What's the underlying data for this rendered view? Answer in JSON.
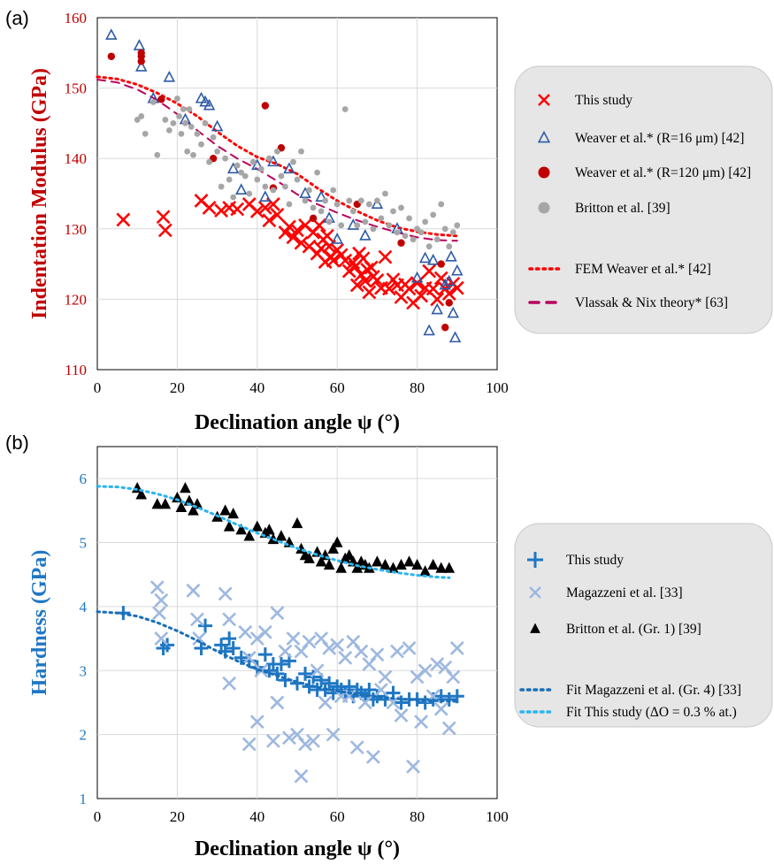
{
  "panels": {
    "a": {
      "label": "(a)"
    },
    "b": {
      "label": "(b)"
    }
  },
  "chart_data": [
    {
      "type": "scatter",
      "title": "",
      "xlabel": "Declination angle ψ (°)",
      "ylabel": "Indentation Modulus (GPa)",
      "xlim": [
        0,
        100
      ],
      "ylim": [
        110,
        160
      ],
      "xticks": [
        "0",
        "20",
        "40",
        "60",
        "80",
        "100"
      ],
      "yticks": [
        "110",
        "120",
        "130",
        "140",
        "150",
        "160"
      ],
      "grid": true,
      "legend_position": "right",
      "series": [
        {
          "name": "This study",
          "marker": "x",
          "color": "#ff0000",
          "x": [
            6.5,
            16.5,
            17,
            26,
            28,
            31,
            33,
            35,
            38,
            40,
            42,
            43,
            44,
            45,
            47,
            48,
            49,
            50,
            51,
            52,
            53,
            54,
            55,
            55.5,
            56,
            56.5,
            57,
            57.5,
            58,
            58.5,
            59,
            60,
            61,
            62,
            63,
            64,
            64.5,
            65,
            65.5,
            66,
            66.5,
            67,
            67.5,
            68,
            68.5,
            69,
            70,
            71,
            72,
            73,
            74,
            75,
            76,
            77,
            78,
            79,
            80,
            81,
            82,
            83,
            84,
            85,
            86,
            87,
            88,
            89,
            90
          ],
          "y": [
            131.3,
            131.7,
            129.8,
            134,
            133,
            132.6,
            133,
            132.8,
            133.5,
            132.5,
            133,
            131.2,
            133.5,
            132,
            129.5,
            130.3,
            128.8,
            129.8,
            128,
            130.5,
            127.5,
            129.5,
            126.5,
            130.5,
            127.2,
            128.5,
            125.3,
            129,
            127.5,
            126,
            125.5,
            127,
            126.3,
            125.5,
            124,
            125.2,
            124.6,
            122,
            126.5,
            123.5,
            125.8,
            122.6,
            124.2,
            121,
            124.5,
            123.2,
            122.7,
            121.6,
            126,
            121.5,
            122.8,
            122,
            120.3,
            122.1,
            121.5,
            119.5,
            122.3,
            120.5,
            121.6,
            124,
            121.5,
            120,
            123,
            121.5,
            120.8,
            122.2,
            121.6
          ]
        },
        {
          "name": "Weaver et al.* (R=16 μm) [42]",
          "marker": "triangle-open",
          "color": "#2e5aa8",
          "x": [
            3.5,
            10.5,
            11,
            14,
            18,
            22,
            26,
            27,
            28,
            30,
            34,
            36,
            40,
            42,
            44,
            48,
            52,
            56,
            58,
            60,
            64,
            67,
            70,
            75,
            80,
            82,
            83,
            84,
            85,
            87,
            88,
            89,
            90,
            89.5,
            88.5
          ],
          "y": [
            157.5,
            156,
            153,
            148.5,
            151.5,
            145.5,
            148.5,
            148,
            147.5,
            144.5,
            138.5,
            135.5,
            139,
            134.5,
            139.5,
            138.5,
            135,
            134.5,
            131.5,
            128.5,
            130.5,
            129,
            133.5,
            130,
            123,
            125.8,
            115.5,
            125.5,
            118.5,
            122,
            122.5,
            118,
            124,
            114.5,
            126
          ]
        },
        {
          "name": "Weaver et al.* (R=120 μm) [42]",
          "marker": "circle",
          "color": "#c00000",
          "x": [
            3.5,
            11,
            11,
            11,
            16,
            29,
            42,
            44,
            46,
            54,
            65,
            76,
            86,
            87,
            88
          ],
          "y": [
            154.5,
            155,
            154.5,
            153.8,
            148.4,
            140,
            147.5,
            135.8,
            141.5,
            131.5,
            133.5,
            128,
            125,
            116,
            119.5
          ]
        },
        {
          "name": "Britton et al. [39]",
          "marker": "circle",
          "color": "#a6a6a6",
          "x": [
            10,
            11,
            12,
            14,
            15,
            17,
            18,
            19,
            20,
            20.5,
            21,
            21.5,
            22,
            22.5,
            23,
            23.5,
            24,
            25,
            26,
            27,
            28,
            29,
            30,
            31,
            32,
            33,
            34,
            35,
            36,
            37,
            38,
            39,
            40,
            41,
            42,
            43,
            44,
            45,
            46,
            47,
            48,
            49,
            50,
            51,
            52,
            53,
            54,
            55,
            56,
            57,
            58,
            59,
            60,
            61,
            62,
            63,
            64,
            65,
            66,
            67,
            68,
            69,
            70,
            71,
            72,
            73,
            74,
            75,
            76,
            77,
            78,
            79,
            80,
            81,
            82,
            83,
            84,
            85,
            86,
            87,
            88,
            89,
            90
          ],
          "y": [
            145.5,
            146,
            143.5,
            148,
            140.5,
            145.5,
            144,
            145,
            148.5,
            146,
            143.5,
            147,
            145,
            141,
            147,
            144.5,
            140.5,
            143.5,
            142,
            145,
            139.5,
            143,
            141,
            136,
            140,
            137,
            134.5,
            139,
            138,
            137.5,
            135,
            139.5,
            137,
            138.5,
            136,
            140,
            135.5,
            141,
            137.5,
            136,
            133.5,
            139.5,
            137,
            141,
            134,
            135.5,
            133,
            138,
            132.5,
            134,
            131,
            135.5,
            133.5,
            130.5,
            147,
            134,
            132.5,
            130.5,
            134,
            131,
            133.5,
            130,
            134,
            131.5,
            135,
            130.5,
            132.5,
            129.5,
            133,
            129,
            131.5,
            128.5,
            130,
            129.5,
            131,
            127.5,
            132,
            128.5,
            133.5,
            130,
            127.5,
            129.5,
            130.5
          ]
        }
      ],
      "fits": [
        {
          "name": "FEM Weaver et al.* [42]",
          "style": "dotted",
          "color": "#ff0000",
          "x": [
            0,
            5,
            10,
            15,
            20,
            25,
            30,
            35,
            40,
            45,
            50,
            55,
            60,
            65,
            70,
            75,
            80,
            85,
            90
          ],
          "y": [
            151.6,
            151.3,
            150.5,
            149.3,
            147.8,
            146,
            143.8,
            141.8,
            140.2,
            139.2,
            137.8,
            135.8,
            134,
            132.5,
            131.2,
            130.2,
            129.6,
            129.2,
            129
          ]
        },
        {
          "name": "Vlassak & Nix theory* [63]",
          "style": "dashed",
          "color": "#b8005c",
          "x": [
            0,
            5,
            10,
            15,
            20,
            25,
            30,
            35,
            40,
            45,
            50,
            55,
            60,
            65,
            70,
            75,
            80,
            85,
            90
          ],
          "y": [
            151.2,
            150.8,
            149.8,
            148.3,
            146.3,
            144,
            141.8,
            140,
            138.5,
            136.8,
            134.9,
            133.5,
            132.3,
            131.2,
            130.3,
            129.5,
            128.8,
            128.4,
            128.3
          ]
        }
      ]
    },
    {
      "type": "scatter",
      "title": "",
      "xlabel": "Declination angle ψ (°)",
      "ylabel": "Hardness (GPa)",
      "xlim": [
        0,
        100
      ],
      "ylim": [
        1,
        6.5
      ],
      "xticks": [
        "0",
        "20",
        "40",
        "60",
        "80",
        "100"
      ],
      "yticks": [
        "1",
        "2",
        "3",
        "4",
        "5",
        "6"
      ],
      "grid": true,
      "legend_position": "right",
      "series": [
        {
          "name": "This study",
          "marker": "plus",
          "color": "#1f77c4",
          "x": [
            6.5,
            16.5,
            17.5,
            26,
            27,
            31,
            32,
            33,
            34,
            36,
            38,
            40,
            42,
            43,
            44,
            45,
            46,
            47,
            48,
            50,
            52,
            53,
            54,
            55,
            56,
            57,
            58,
            59,
            60,
            61,
            62,
            63,
            64,
            65,
            66,
            67,
            68,
            69,
            70,
            72,
            74,
            76,
            78,
            80,
            82,
            84,
            86,
            88,
            90
          ],
          "y": [
            3.9,
            3.35,
            3.4,
            3.35,
            3.7,
            3.4,
            3.3,
            3.5,
            3.35,
            3.2,
            3.15,
            3.05,
            3.25,
            3.0,
            3.1,
            2.95,
            3.1,
            2.85,
            3.15,
            2.8,
            2.95,
            2.75,
            2.9,
            2.7,
            2.85,
            2.7,
            2.8,
            2.65,
            2.75,
            2.7,
            2.65,
            2.75,
            2.6,
            2.7,
            2.65,
            2.6,
            2.7,
            2.55,
            2.6,
            2.55,
            2.65,
            2.5,
            2.55,
            2.55,
            2.5,
            2.55,
            2.6,
            2.55,
            2.6
          ]
        },
        {
          "name": "Magazzeni et al. [33]",
          "marker": "x",
          "color": "#9db8e0",
          "x": [
            15,
            15.5,
            16,
            16,
            24,
            25,
            25.5,
            32,
            33,
            33,
            37,
            38,
            38,
            40,
            40,
            41,
            42,
            44,
            45,
            45,
            47,
            48,
            49,
            50,
            51,
            51,
            52,
            53,
            54,
            55,
            56,
            57,
            58,
            59,
            60,
            61,
            62,
            63,
            64,
            65,
            66,
            67,
            68,
            69,
            70,
            71,
            72,
            74,
            75,
            76,
            78,
            79,
            80,
            81,
            82,
            84,
            85,
            86,
            87,
            88,
            89,
            90
          ],
          "y": [
            4.3,
            3.9,
            4.1,
            3.5,
            4.25,
            3.8,
            3.5,
            4.2,
            3.8,
            2.8,
            3.6,
            3.2,
            1.85,
            3.5,
            2.2,
            3.0,
            3.6,
            1.9,
            3.9,
            2.5,
            3.3,
            1.95,
            3.5,
            2.0,
            1.35,
            3.3,
            1.85,
            3.45,
            1.9,
            3.0,
            3.5,
            2.5,
            3.35,
            2.0,
            3.4,
            2.6,
            3.2,
            2.6,
            3.45,
            1.8,
            3.3,
            2.5,
            3.1,
            1.65,
            3.25,
            2.7,
            2.9,
            2.5,
            3.3,
            2.3,
            3.35,
            1.5,
            2.9,
            2.2,
            3.0,
            2.6,
            3.1,
            2.4,
            3.05,
            2.1,
            2.9,
            3.35
          ]
        },
        {
          "name": "Britton et al. (Gr. 1) [39]",
          "marker": "triangle",
          "color": "#000000",
          "x": [
            10,
            11,
            15,
            17,
            20,
            21,
            22,
            23,
            24,
            25,
            30,
            32,
            33,
            34,
            36,
            38,
            40,
            42,
            43,
            44,
            46,
            48,
            50,
            51,
            52,
            53,
            55,
            56,
            57,
            58,
            59,
            60,
            61,
            62,
            63,
            64,
            65,
            66,
            67,
            68,
            70,
            72,
            74,
            76,
            78,
            80,
            82,
            84,
            86,
            88
          ],
          "y": [
            5.85,
            5.75,
            5.6,
            5.6,
            5.7,
            5.55,
            5.85,
            5.65,
            5.5,
            5.6,
            5.4,
            5.5,
            5.25,
            5.45,
            5.2,
            5.1,
            5.25,
            5.15,
            5.2,
            5.05,
            5.1,
            5.0,
            5.3,
            4.9,
            4.8,
            4.75,
            4.85,
            4.7,
            4.8,
            4.65,
            4.9,
            5.0,
            4.6,
            4.75,
            4.8,
            4.7,
            4.6,
            4.7,
            4.65,
            4.6,
            4.7,
            4.65,
            4.6,
            4.65,
            4.7,
            4.65,
            4.55,
            4.65,
            4.6,
            4.6
          ]
        }
      ],
      "fits": [
        {
          "name": "Fit Magazzeni et al. (Gr. 4) [33]",
          "style": "dotted",
          "color": "#1a6fb8",
          "x": [
            0,
            5,
            10,
            15,
            20,
            25,
            30,
            35,
            40,
            45,
            50,
            55,
            60,
            65,
            70,
            75,
            80,
            85,
            90
          ],
          "y": [
            3.92,
            3.9,
            3.85,
            3.75,
            3.62,
            3.47,
            3.3,
            3.15,
            3.02,
            2.92,
            2.82,
            2.74,
            2.68,
            2.63,
            2.59,
            2.56,
            2.54,
            2.53,
            2.52
          ]
        },
        {
          "name": "Fit This study (ΔO = 0.3 % at.)",
          "style": "dotted",
          "color": "#29b5f0",
          "x": [
            0,
            5,
            10,
            15,
            20,
            25,
            30,
            35,
            40,
            45,
            50,
            55,
            60,
            65,
            70,
            75,
            80,
            85,
            88
          ],
          "y": [
            5.88,
            5.87,
            5.83,
            5.76,
            5.67,
            5.55,
            5.42,
            5.28,
            5.15,
            5.03,
            4.91,
            4.81,
            4.72,
            4.64,
            4.58,
            4.53,
            4.49,
            4.46,
            4.45
          ]
        }
      ]
    }
  ]
}
